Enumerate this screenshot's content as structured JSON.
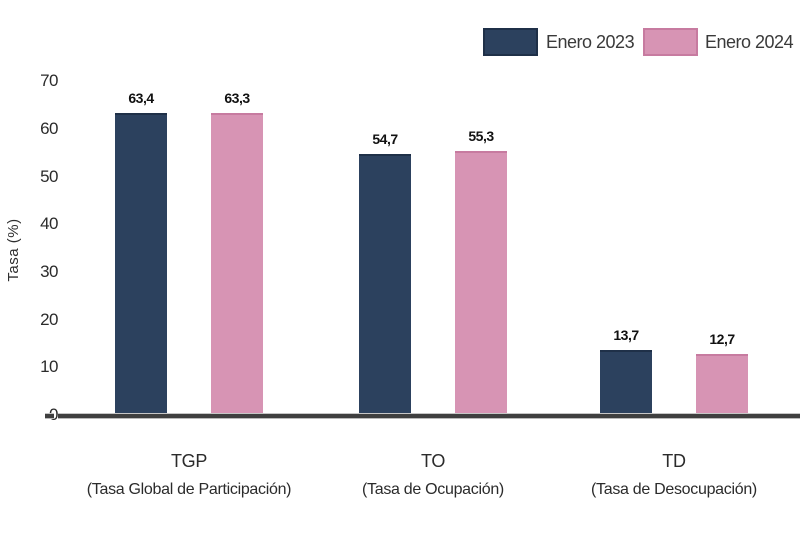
{
  "colors": {
    "background": "#ffffff",
    "axis_line": "#3f3f3f",
    "text": "#2b2b2b"
  },
  "chart_data": {
    "type": "bar",
    "title": "",
    "xlabel": "",
    "ylabel": "Tasa (%)",
    "ylim": [
      0,
      70
    ],
    "yticks": [
      0,
      10,
      20,
      30,
      40,
      50,
      60,
      70
    ],
    "grid": false,
    "legend_position": "top-right",
    "decimal_separator": ",",
    "categories": [
      {
        "code": "TGP",
        "sub": "(Tasa Global de Participación)"
      },
      {
        "code": "TO",
        "sub": "(Tasa de Ocupación)"
      },
      {
        "code": "TD",
        "sub": "(Tasa de Desocupación)"
      }
    ],
    "series": [
      {
        "name": "Enero 2023",
        "color": "#2c415e",
        "edge": "#1f3048",
        "values": [
          63.4,
          54.7,
          13.7
        ],
        "display": [
          "63,4",
          "54,7",
          "13,7"
        ]
      },
      {
        "name": "Enero 2024",
        "color": "#d794b4",
        "edge": "#c77ba0",
        "values": [
          63.3,
          55.3,
          12.7
        ],
        "display": [
          "63,3",
          "55,3",
          "12,7"
        ]
      }
    ]
  }
}
